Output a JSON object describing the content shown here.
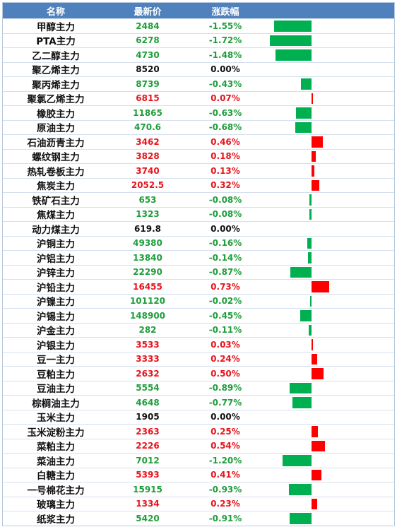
{
  "header": {
    "name": "名称",
    "price": "最新价",
    "change": "涨跌幅"
  },
  "colors": {
    "up": "#ff0000",
    "down": "#00b050",
    "header_bg": "#4f81bd"
  },
  "chart_data": {
    "type": "table",
    "columns": [
      "名称",
      "最新价",
      "涨跌幅"
    ],
    "rows": [
      {
        "name": "甲醇主力",
        "price": "2484",
        "change": "-1.55%",
        "pct": -1.55
      },
      {
        "name": "PTA主力",
        "price": "6278",
        "change": "-1.72%",
        "pct": -1.72
      },
      {
        "name": "乙二醇主力",
        "price": "4730",
        "change": "-1.48%",
        "pct": -1.48
      },
      {
        "name": "聚乙烯主力",
        "price": "8520",
        "change": "0.00%",
        "pct": 0.0
      },
      {
        "name": "聚丙烯主力",
        "price": "8739",
        "change": "-0.43%",
        "pct": -0.43
      },
      {
        "name": "聚氯乙烯主力",
        "price": "6815",
        "change": "0.07%",
        "pct": 0.07
      },
      {
        "name": "橡胶主力",
        "price": "11865",
        "change": "-0.63%",
        "pct": -0.63
      },
      {
        "name": "原油主力",
        "price": "470.6",
        "change": "-0.68%",
        "pct": -0.68
      },
      {
        "name": "石油沥青主力",
        "price": "3462",
        "change": "0.46%",
        "pct": 0.46
      },
      {
        "name": "螺纹钢主力",
        "price": "3828",
        "change": "0.18%",
        "pct": 0.18
      },
      {
        "name": "热轧卷板主力",
        "price": "3740",
        "change": "0.13%",
        "pct": 0.13
      },
      {
        "name": "焦炭主力",
        "price": "2052.5",
        "change": "0.32%",
        "pct": 0.32
      },
      {
        "name": "铁矿石主力",
        "price": "653",
        "change": "-0.08%",
        "pct": -0.08
      },
      {
        "name": "焦煤主力",
        "price": "1323",
        "change": "-0.08%",
        "pct": -0.08
      },
      {
        "name": "动力煤主力",
        "price": "619.8",
        "change": "0.00%",
        "pct": 0.0
      },
      {
        "name": "沪铜主力",
        "price": "49380",
        "change": "-0.16%",
        "pct": -0.16
      },
      {
        "name": "沪铝主力",
        "price": "13840",
        "change": "-0.14%",
        "pct": -0.14
      },
      {
        "name": "沪锌主力",
        "price": "22290",
        "change": "-0.87%",
        "pct": -0.87
      },
      {
        "name": "沪铅主力",
        "price": "16455",
        "change": "0.73%",
        "pct": 0.73
      },
      {
        "name": "沪镍主力",
        "price": "101120",
        "change": "-0.02%",
        "pct": -0.02
      },
      {
        "name": "沪锡主力",
        "price": "148900",
        "change": "-0.45%",
        "pct": -0.45
      },
      {
        "name": "沪金主力",
        "price": "282",
        "change": "-0.11%",
        "pct": -0.11
      },
      {
        "name": "沪银主力",
        "price": "3533",
        "change": "0.03%",
        "pct": 0.03
      },
      {
        "name": "豆一主力",
        "price": "3333",
        "change": "0.24%",
        "pct": 0.24
      },
      {
        "name": "豆粕主力",
        "price": "2632",
        "change": "0.50%",
        "pct": 0.5
      },
      {
        "name": "豆油主力",
        "price": "5554",
        "change": "-0.89%",
        "pct": -0.89
      },
      {
        "name": "棕榈油主力",
        "price": "4648",
        "change": "-0.77%",
        "pct": -0.77
      },
      {
        "name": "玉米主力",
        "price": "1905",
        "change": "0.00%",
        "pct": 0.0
      },
      {
        "name": "玉米淀粉主力",
        "price": "2363",
        "change": "0.25%",
        "pct": 0.25
      },
      {
        "name": "菜粕主力",
        "price": "2226",
        "change": "0.54%",
        "pct": 0.54
      },
      {
        "name": "菜油主力",
        "price": "7012",
        "change": "-1.20%",
        "pct": -1.2
      },
      {
        "name": "白糖主力",
        "price": "5393",
        "change": "0.41%",
        "pct": 0.41
      },
      {
        "name": "一号棉花主力",
        "price": "15915",
        "change": "-0.93%",
        "pct": -0.93
      },
      {
        "name": "玻璃主力",
        "price": "1334",
        "change": "0.23%",
        "pct": 0.23
      },
      {
        "name": "纸浆主力",
        "price": "5420",
        "change": "-0.91%",
        "pct": -0.91
      }
    ]
  }
}
